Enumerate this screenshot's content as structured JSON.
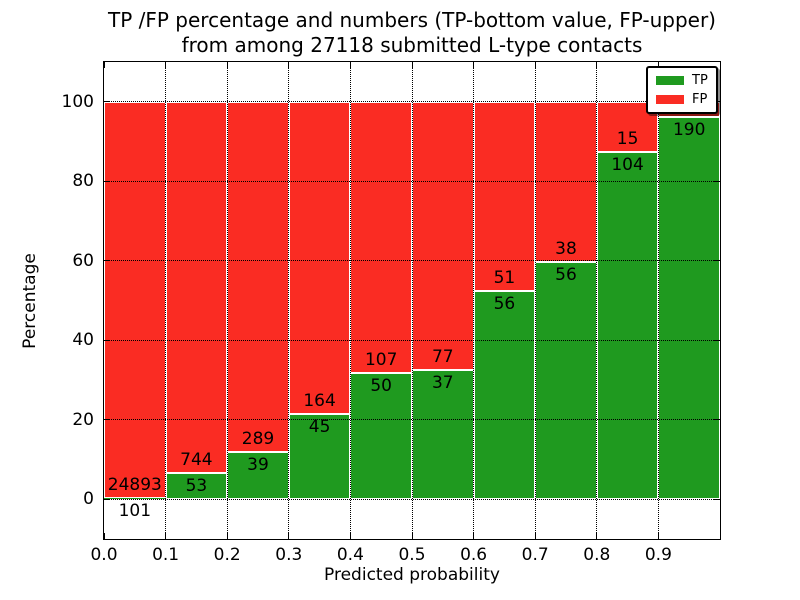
{
  "title": {
    "line1": "TP /FP percentage and numbers (TP-bottom value, FP-upper)",
    "line2": "from among 27118 submitted L-type contacts"
  },
  "axes": {
    "xlabel": "Predicted probability",
    "ylabel": "Percentage",
    "x_ticks": [
      "0.0",
      "0.1",
      "0.2",
      "0.3",
      "0.4",
      "0.5",
      "0.6",
      "0.7",
      "0.8",
      "0.9"
    ],
    "y_ticks": [
      "0",
      "20",
      "40",
      "60",
      "80",
      "100"
    ],
    "xlim": [
      0.0,
      1.0
    ],
    "ylim": [
      -10,
      110
    ]
  },
  "legend": {
    "items": [
      {
        "label": "TP",
        "color": "#1f9a1f"
      },
      {
        "label": "FP",
        "color": "#fa2c23"
      }
    ]
  },
  "chart_data": {
    "type": "bar",
    "stacked": true,
    "normalized_to_percent": true,
    "title": "TP /FP percentage and numbers (TP-bottom value, FP-upper) from among 27118 submitted L-type contacts",
    "xlabel": "Predicted probability",
    "ylabel": "Percentage",
    "total_submitted": 27118,
    "bin_width": 0.1,
    "grid": "dotted",
    "legend_position": "upper right",
    "categories": [
      "0.0-0.1",
      "0.1-0.2",
      "0.2-0.3",
      "0.3-0.4",
      "0.4-0.5",
      "0.5-0.6",
      "0.6-0.7",
      "0.7-0.8",
      "0.8-0.9",
      "0.9-1.0"
    ],
    "series": [
      {
        "name": "TP",
        "color": "#1f9a1f",
        "counts": [
          101,
          53,
          39,
          45,
          50,
          37,
          56,
          56,
          104,
          190
        ],
        "percents": [
          0.4,
          6.6,
          11.9,
          21.5,
          31.8,
          32.5,
          52.3,
          59.6,
          87.4,
          96.1
        ]
      },
      {
        "name": "FP",
        "color": "#fa2c23",
        "counts": [
          24893,
          744,
          289,
          164,
          107,
          77,
          51,
          38,
          15,
          null
        ],
        "percents": [
          99.6,
          93.4,
          88.1,
          78.5,
          68.2,
          67.5,
          47.7,
          40.4,
          12.6,
          3.9
        ]
      }
    ],
    "note": "FP count label of last bin not visible (covered by legend)"
  }
}
